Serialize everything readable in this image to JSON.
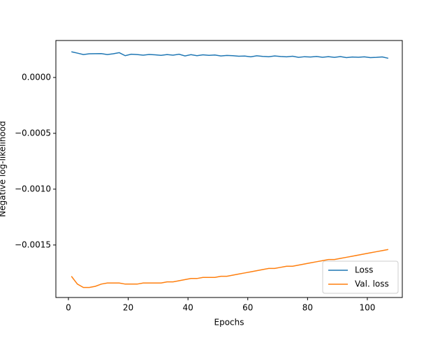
{
  "chart_data": {
    "type": "line",
    "xlabel": "Epochs",
    "ylabel": "Negative log-likelihood",
    "x": [
      1,
      3,
      5,
      7,
      9,
      11,
      13,
      15,
      17,
      19,
      21,
      23,
      25,
      27,
      29,
      31,
      33,
      35,
      37,
      39,
      41,
      43,
      45,
      47,
      49,
      51,
      53,
      55,
      57,
      59,
      61,
      63,
      65,
      67,
      69,
      71,
      73,
      75,
      77,
      79,
      81,
      83,
      85,
      87,
      89,
      91,
      93,
      95,
      97,
      99,
      101,
      103,
      105,
      107
    ],
    "series": [
      {
        "name": "Loss",
        "color": "#1f77b4",
        "values": [
          0.00023,
          0.000218,
          0.000205,
          0.000212,
          0.000213,
          0.000214,
          0.000205,
          0.000212,
          0.000222,
          0.000195,
          0.000208,
          0.000205,
          0.0002,
          0.000206,
          0.000203,
          0.000198,
          0.000205,
          0.0002,
          0.000208,
          0.000193,
          0.000204,
          0.000195,
          0.000203,
          0.000198,
          0.000201,
          0.000193,
          0.000197,
          0.000195,
          0.00019,
          0.000192,
          0.000185,
          0.000194,
          0.000189,
          0.000186,
          0.000193,
          0.000188,
          0.000185,
          0.00019,
          0.00018,
          0.000186,
          0.000183,
          0.000188,
          0.000181,
          0.000186,
          0.00018,
          0.000187,
          0.000178,
          0.000183,
          0.000181,
          0.000185,
          0.000178,
          0.00018,
          0.000184,
          0.000172
        ]
      },
      {
        "name": "Val. loss",
        "color": "#ff7f0e",
        "values": [
          -0.00178,
          -0.00185,
          -0.00188,
          -0.00188,
          -0.00187,
          -0.00185,
          -0.00184,
          -0.00184,
          -0.00184,
          -0.00185,
          -0.00185,
          -0.00185,
          -0.00184,
          -0.00184,
          -0.00184,
          -0.00184,
          -0.00183,
          -0.00183,
          -0.00182,
          -0.00181,
          -0.0018,
          -0.0018,
          -0.00179,
          -0.00179,
          -0.00179,
          -0.00178,
          -0.00178,
          -0.00177,
          -0.00176,
          -0.00175,
          -0.00174,
          -0.00173,
          -0.00172,
          -0.00171,
          -0.00171,
          -0.0017,
          -0.00169,
          -0.00169,
          -0.00168,
          -0.00167,
          -0.00166,
          -0.00165,
          -0.00164,
          -0.00163,
          -0.00163,
          -0.00162,
          -0.00161,
          -0.0016,
          -0.00159,
          -0.00158,
          -0.00157,
          -0.00156,
          -0.00155,
          -0.00154
        ]
      }
    ],
    "xlim": [
      -4.2,
      111.7
    ],
    "xticks": [
      0,
      20,
      40,
      60,
      80,
      100
    ],
    "ylim": [
      -0.00197,
      0.000331
    ],
    "yticks": [
      {
        "value": 0,
        "label": "0.0000"
      },
      {
        "value": -0.0005,
        "label": "−0.0005"
      },
      {
        "value": -0.001,
        "label": "−0.0010"
      },
      {
        "value": -0.0015,
        "label": "−0.0015"
      }
    ],
    "legend": "lower right"
  }
}
